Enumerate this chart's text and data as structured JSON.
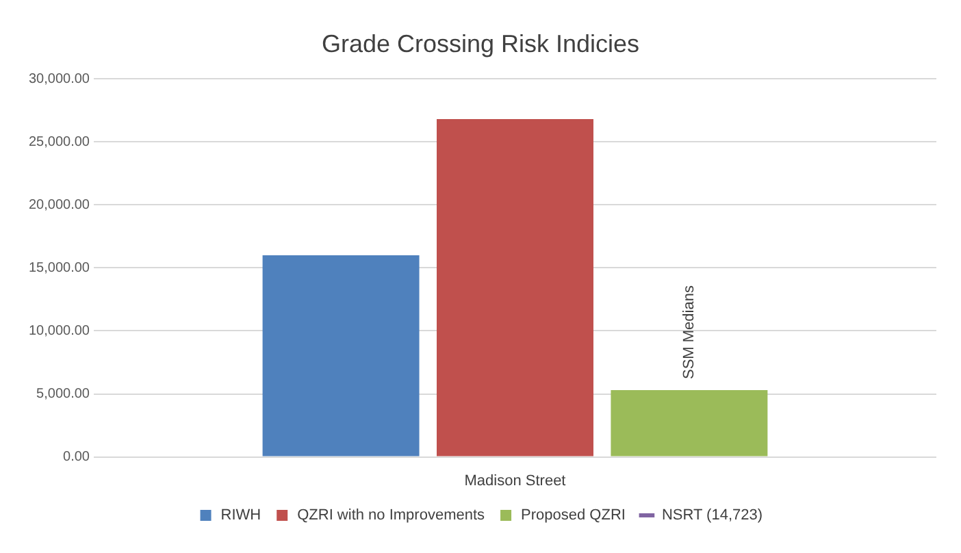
{
  "chart_data": {
    "type": "bar",
    "title": "Grade Crossing Risk Indicies",
    "categories": [
      "Madison Street"
    ],
    "series": [
      {
        "name": "RIWH",
        "color": "#4f81bd",
        "values": [
          16000
        ]
      },
      {
        "name": "QZRI with no Improvements",
        "color": "#c0504d",
        "values": [
          26800
        ]
      },
      {
        "name": "Proposed QZRI",
        "color": "#9bbb59",
        "values": [
          5300
        ]
      },
      {
        "name": "NSRT (14,723)",
        "color": "#8064a2",
        "values": [
          null
        ],
        "type": "line"
      }
    ],
    "ylim": [
      0,
      30000
    ],
    "yticks": [
      {
        "value": 0,
        "label": "0.00"
      },
      {
        "value": 5000,
        "label": "5,000.00"
      },
      {
        "value": 10000,
        "label": "10,000.00"
      },
      {
        "value": 15000,
        "label": "15,000.00"
      },
      {
        "value": 20000,
        "label": "20,000.00"
      },
      {
        "value": 25000,
        "label": "25,000.00"
      },
      {
        "value": 30000,
        "label": "30,000.00"
      }
    ],
    "grid": "y",
    "legend": "bottom",
    "annotations": [
      "SSM Medians"
    ]
  }
}
